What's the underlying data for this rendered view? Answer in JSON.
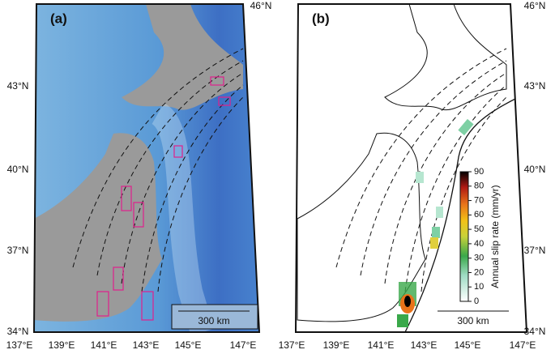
{
  "panels": [
    {
      "label": "(a)",
      "lat_labels": [
        "46°N",
        "43°N",
        "40°N",
        "37°N",
        "34°N"
      ],
      "lon_labels": [
        "137°E",
        "139°E",
        "141°E",
        "143°E",
        "145°E",
        "147°E"
      ],
      "scale_bar": "300 km"
    },
    {
      "label": "(b)",
      "lat_labels": [
        "46°N",
        "43°N",
        "40°N",
        "37°N",
        "34°N"
      ],
      "lon_labels": [
        "137°E",
        "139°E",
        "141°E",
        "143°E",
        "145°E",
        "147°E"
      ],
      "scale_bar": "300 km",
      "colorbar": {
        "title": "Annual slip rate (mm/yr)",
        "ticks": [
          0,
          10,
          20,
          30,
          40,
          50,
          60,
          70,
          80,
          90
        ]
      }
    }
  ]
}
